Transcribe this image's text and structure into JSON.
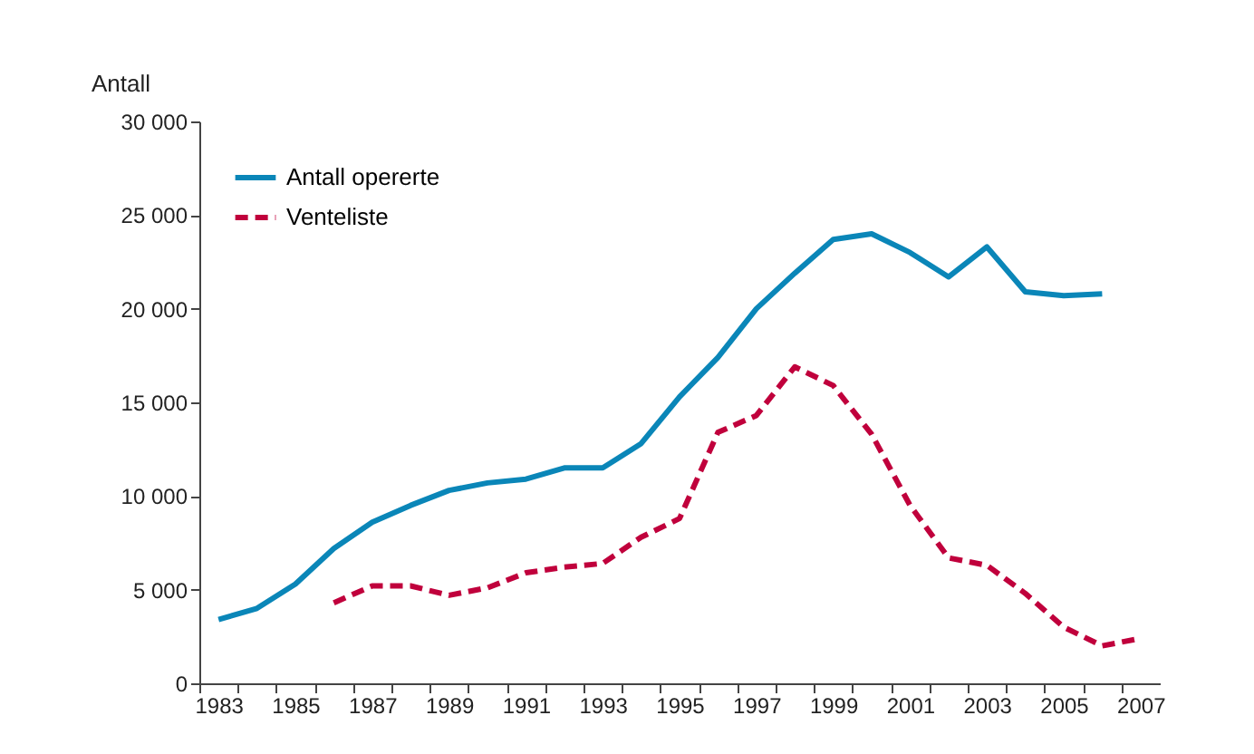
{
  "chart_data": {
    "type": "line",
    "ylabel": "Antall",
    "categories": [
      "1983",
      null,
      "1985",
      null,
      "1987",
      null,
      "1989",
      null,
      "1991",
      null,
      "1993",
      null,
      "1995",
      null,
      "1997",
      null,
      "1999",
      null,
      "2001",
      null,
      "2003",
      null,
      "2005",
      null,
      "2007"
    ],
    "series": [
      {
        "name": "Antall opererte",
        "color": "#0a86b8",
        "line_style": "solid",
        "values": [
          3400,
          4000,
          5300,
          7200,
          8600,
          9500,
          10300,
          10700,
          10900,
          11500,
          11500,
          12800,
          15300,
          17400,
          20000,
          21900,
          23700,
          24000,
          23000,
          21700,
          23300,
          20900,
          20700,
          20800,
          null
        ]
      },
      {
        "name": "Venteliste",
        "color": "#c0003c",
        "line_style": "dashed",
        "values": [
          null,
          null,
          null,
          4300,
          5200,
          5200,
          4700,
          5100,
          5900,
          6200,
          6400,
          7800,
          8800,
          13400,
          14300,
          16900,
          15900,
          13300,
          9500,
          6700,
          6300,
          4800,
          3000,
          2000,
          2400
        ]
      }
    ],
    "ylim": [
      0,
      30000
    ],
    "yticks": [
      {
        "value": 0,
        "label": "0"
      },
      {
        "value": 5000,
        "label": "5 000"
      },
      {
        "value": 10000,
        "label": "10 000"
      },
      {
        "value": 15000,
        "label": "15 000"
      },
      {
        "value": 20000,
        "label": "20 000"
      },
      {
        "value": 25000,
        "label": "25 000"
      },
      {
        "value": 30000,
        "label": "30 000"
      }
    ],
    "grid": false,
    "legend": "top left",
    "marker": "none"
  }
}
